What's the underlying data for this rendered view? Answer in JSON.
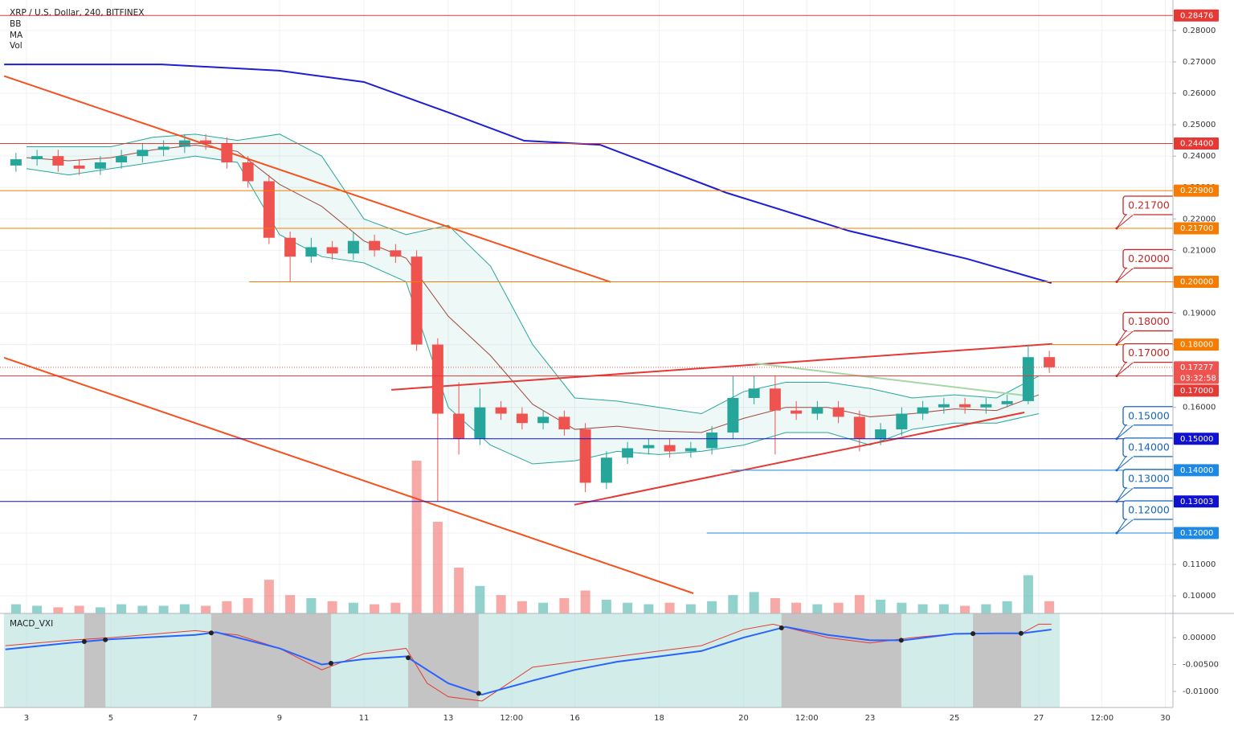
{
  "chart_data": {
    "type": "candlestick",
    "title": "XRP / U.S. Dollar, 240, BITFINEX",
    "indicators": [
      "BB",
      "MA",
      "Vol"
    ],
    "up_color": "#26a69a",
    "down_color": "#ef5350",
    "xlim": [
      2.467,
      30.181
    ],
    "xticks": [
      3,
      5,
      7,
      9,
      11,
      13,
      {
        "value": 14.5,
        "label": "12:00"
      },
      16,
      18,
      20,
      {
        "value": 21.5,
        "label": "12:00"
      },
      23,
      25,
      27,
      {
        "value": 28.5,
        "label": "12:00"
      },
      30
    ],
    "ylim": [
      0.0944,
      0.2897
    ],
    "yticks": [
      {
        "value": 0.1,
        "label": "0.10000"
      },
      {
        "value": 0.11,
        "label": "0.11000"
      },
      {
        "value": 0.12,
        "label": "0.12000"
      },
      {
        "value": 0.13,
        "label": "0.13000"
      },
      {
        "value": 0.14,
        "label": "0.14000"
      },
      {
        "value": 0.15,
        "label": "0.15000"
      },
      {
        "value": 0.16,
        "label": "0.16000"
      },
      {
        "value": 0.17,
        "label": "0.17000"
      },
      {
        "value": 0.18,
        "label": "0.18000"
      },
      {
        "value": 0.19,
        "label": "0.19000"
      },
      {
        "value": 0.2,
        "label": "0.20000"
      },
      {
        "value": 0.21,
        "label": "0.21000"
      },
      {
        "value": 0.22,
        "label": "0.22000"
      },
      {
        "value": 0.23,
        "label": "0.23000"
      },
      {
        "value": 0.24,
        "label": "0.24000"
      },
      {
        "value": 0.25,
        "label": "0.25000"
      },
      {
        "value": 0.26,
        "label": "0.26000"
      },
      {
        "value": 0.27,
        "label": "0.27000"
      },
      {
        "value": 0.28,
        "label": "0.28000"
      }
    ],
    "grid": true,
    "x": [
      2.75,
      3.25,
      3.75,
      4.25,
      4.75,
      5.25,
      5.75,
      6.25,
      6.75,
      7.25,
      7.75,
      8.25,
      8.75,
      9.25,
      9.75,
      10.25,
      10.75,
      11.25,
      11.75,
      12.25,
      12.75,
      13.25,
      13.75,
      14.25,
      14.75,
      15.25,
      15.75,
      16.25,
      16.75,
      17.25,
      17.75,
      18.25,
      18.75,
      19.25,
      19.75,
      20.25,
      20.75,
      21.25,
      21.75,
      22.25,
      22.75,
      23.25,
      23.75,
      24.25,
      24.75,
      25.25,
      25.75,
      26.25,
      26.75,
      27.25
    ],
    "open": [
      0.237,
      0.239,
      0.24,
      0.237,
      0.236,
      0.238,
      0.24,
      0.242,
      0.243,
      0.245,
      0.244,
      0.238,
      0.232,
      0.214,
      0.208,
      0.211,
      0.209,
      0.213,
      0.21,
      0.208,
      0.18,
      0.158,
      0.15,
      0.16,
      0.158,
      0.155,
      0.157,
      0.153,
      0.136,
      0.144,
      0.147,
      0.148,
      0.146,
      0.147,
      0.152,
      0.163,
      0.166,
      0.159,
      0.158,
      0.16,
      0.157,
      0.15,
      0.153,
      0.158,
      0.16,
      0.161,
      0.16,
      0.161,
      0.162,
      0.176
    ],
    "high": [
      0.241,
      0.242,
      0.242,
      0.239,
      0.24,
      0.242,
      0.244,
      0.245,
      0.247,
      0.247,
      0.246,
      0.24,
      0.234,
      0.216,
      0.214,
      0.213,
      0.216,
      0.215,
      0.212,
      0.21,
      0.182,
      0.168,
      0.166,
      0.162,
      0.16,
      0.159,
      0.159,
      0.155,
      0.146,
      0.149,
      0.15,
      0.15,
      0.149,
      0.154,
      0.17,
      0.17,
      0.17,
      0.162,
      0.162,
      0.162,
      0.159,
      0.155,
      0.16,
      0.162,
      0.163,
      0.163,
      0.163,
      0.164,
      0.18,
      0.178
    ],
    "low": [
      0.235,
      0.237,
      0.235,
      0.234,
      0.234,
      0.236,
      0.238,
      0.24,
      0.241,
      0.242,
      0.236,
      0.23,
      0.212,
      0.2,
      0.206,
      0.207,
      0.207,
      0.208,
      0.206,
      0.178,
      0.13,
      0.145,
      0.148,
      0.156,
      0.153,
      0.153,
      0.151,
      0.133,
      0.134,
      0.142,
      0.145,
      0.144,
      0.144,
      0.145,
      0.15,
      0.161,
      0.145,
      0.156,
      0.156,
      0.155,
      0.146,
      0.148,
      0.151,
      0.156,
      0.158,
      0.158,
      0.158,
      0.16,
      0.161,
      0.171
    ],
    "close": [
      0.239,
      0.24,
      0.237,
      0.236,
      0.238,
      0.24,
      0.242,
      0.243,
      0.245,
      0.244,
      0.238,
      0.232,
      0.214,
      0.208,
      0.211,
      0.209,
      0.213,
      0.21,
      0.208,
      0.18,
      0.158,
      0.15,
      0.16,
      0.158,
      0.155,
      0.157,
      0.153,
      0.136,
      0.144,
      0.147,
      0.148,
      0.146,
      0.147,
      0.152,
      0.163,
      0.166,
      0.159,
      0.158,
      0.16,
      0.157,
      0.15,
      0.153,
      0.158,
      0.16,
      0.161,
      0.16,
      0.161,
      0.162,
      0.176,
      0.17277
    ],
    "volume": [
      6,
      5,
      4,
      5,
      4,
      6,
      5,
      5,
      6,
      5,
      8,
      10,
      22,
      12,
      10,
      8,
      7,
      6,
      7,
      100,
      60,
      30,
      18,
      12,
      8,
      7,
      10,
      15,
      9,
      7,
      6,
      7,
      6,
      8,
      12,
      14,
      10,
      7,
      6,
      7,
      12,
      9,
      7,
      6,
      6,
      5,
      6,
      8,
      25,
      8
    ],
    "bb": {
      "x": [
        3,
        4,
        5,
        6,
        7,
        8,
        9,
        10,
        11,
        12,
        13,
        14,
        15,
        16,
        17,
        18,
        19,
        20,
        21,
        22,
        23,
        24,
        25,
        26,
        27
      ],
      "upper": [
        0.243,
        0.243,
        0.243,
        0.246,
        0.247,
        0.245,
        0.247,
        0.24,
        0.22,
        0.215,
        0.218,
        0.205,
        0.18,
        0.163,
        0.162,
        0.16,
        0.158,
        0.165,
        0.168,
        0.168,
        0.166,
        0.163,
        0.164,
        0.163,
        0.17
      ],
      "basis": [
        0.2395,
        0.2385,
        0.2395,
        0.242,
        0.2435,
        0.2415,
        0.231,
        0.224,
        0.213,
        0.2075,
        0.189,
        0.1765,
        0.161,
        0.153,
        0.154,
        0.1525,
        0.152,
        0.1565,
        0.16,
        0.16,
        0.157,
        0.158,
        0.1595,
        0.159,
        0.164
      ],
      "lower": [
        0.236,
        0.234,
        0.236,
        0.238,
        0.24,
        0.238,
        0.215,
        0.208,
        0.206,
        0.2,
        0.16,
        0.148,
        0.142,
        0.143,
        0.146,
        0.145,
        0.146,
        0.148,
        0.152,
        0.152,
        0.148,
        0.153,
        0.155,
        0.155,
        0.158
      ],
      "color": "#26a69a",
      "basis_color": "#a1483f"
    },
    "ma": {
      "x": [
        2.47,
        6.2,
        9.0,
        11.0,
        13.0,
        14.8,
        16.6,
        19.6,
        22.5,
        25.3,
        27.3
      ],
      "values": [
        0.2692,
        0.2692,
        0.2672,
        0.2636,
        0.2539,
        0.2449,
        0.2436,
        0.2283,
        0.2162,
        0.2073,
        0.1996
      ],
      "color": "#1e1ed2"
    },
    "trendlines": [
      {
        "points": [
          [
            2.47,
            0.2655
          ],
          [
            16.85,
            0.1999
          ]
        ],
        "color": "#f4511e"
      },
      {
        "points": [
          [
            2.47,
            0.1758
          ],
          [
            18.81,
            0.1008
          ]
        ],
        "color": "#f4511e"
      },
      {
        "points": [
          [
            11.65,
            0.1656
          ],
          [
            27.32,
            0.1802
          ]
        ],
        "color": "#e53935"
      },
      {
        "points": [
          [
            15.99,
            0.129
          ],
          [
            26.66,
            0.1584
          ]
        ],
        "color": "#e53935"
      },
      {
        "points": [
          [
            20.28,
            0.174
          ],
          [
            26.85,
            0.1635
          ]
        ],
        "color": "#a5d6a7"
      }
    ],
    "levels": [
      {
        "value": 0.28476,
        "label": "0.28476",
        "color": "#e53935"
      },
      {
        "value": 0.244,
        "label": "0.24400",
        "color": "#e53935"
      },
      {
        "value": 0.229,
        "label": "0.22900",
        "color": "#f57c00"
      },
      {
        "value": 0.217,
        "label": "0.21700",
        "color": "#f57c00"
      },
      {
        "value": 0.2,
        "label": "0.20000",
        "color": "#f57c00",
        "start": 8.28
      },
      {
        "value": 0.18,
        "label": "0.18000",
        "color": "#f57c00",
        "start": 27.3
      },
      {
        "value": 0.17277,
        "label": "0.17277",
        "color": "#ef5350",
        "countdown": "03:32:58",
        "dotted": true
      },
      {
        "value": 0.17,
        "label": "0.17000",
        "color": "#e53935"
      },
      {
        "value": 0.15,
        "label": "0.15000",
        "color": "#1010d0"
      },
      {
        "value": 0.14,
        "label": "0.14000",
        "color": "#1e88e5",
        "start": 19.7
      },
      {
        "value": 0.13003,
        "label": "0.13003",
        "color": "#1010d0"
      },
      {
        "value": 0.12,
        "label": "0.12000",
        "color": "#1e88e5",
        "start": 19.13
      }
    ],
    "callouts": [
      {
        "value": 0.217,
        "label": "0.21700",
        "color": "#c62828"
      },
      {
        "value": 0.2,
        "label": "0.20000",
        "color": "#c62828"
      },
      {
        "value": 0.18,
        "label": "0.18000",
        "color": "#c62828"
      },
      {
        "value": 0.17,
        "label": "0.17000",
        "color": "#c62828"
      },
      {
        "value": 0.15,
        "label": "0.15000",
        "color": "#1565c0"
      },
      {
        "value": 0.14,
        "label": "0.14000",
        "color": "#1565c0"
      },
      {
        "value": 0.13,
        "label": "0.13000",
        "color": "#1565c0"
      },
      {
        "value": 0.12,
        "label": "0.12000",
        "color": "#1565c0"
      }
    ],
    "macd": {
      "name": "MACD_VXI",
      "ylim": [
        -0.013,
        0.0045
      ],
      "yticks": [
        {
          "value": 0,
          "label": "0.00000"
        },
        {
          "value": -0.005,
          "label": "-0.00500"
        },
        {
          "value": -0.01,
          "label": "-0.01000"
        }
      ],
      "shaded_ranges": [
        [
          4.37,
          4.87
        ],
        [
          7.38,
          10.22
        ],
        [
          12.05,
          13.72
        ],
        [
          20.9,
          23.74
        ],
        [
          25.44,
          26.58
        ]
      ],
      "macd_line": {
        "x": [
          2.5,
          4,
          5,
          7,
          7.5,
          9,
          10,
          11,
          12,
          13,
          13.8,
          15,
          16,
          17,
          18,
          19,
          20,
          21,
          22,
          23,
          23.8,
          25,
          26,
          26.6,
          27.3
        ],
        "values": [
          -0.0022,
          -0.001,
          -0.0003,
          0.0005,
          0.001,
          -0.002,
          -0.005,
          -0.004,
          -0.0035,
          -0.0085,
          -0.0106,
          -0.008,
          -0.006,
          -0.0045,
          -0.0035,
          -0.0025,
          0.0,
          0.002,
          0.0005,
          -0.0005,
          -0.0005,
          0.0007,
          0.0008,
          0.0008,
          0.0015
        ],
        "color": "#2962ff"
      },
      "signal_line": {
        "x": [
          2.5,
          4,
          5,
          7,
          8,
          9,
          10,
          11,
          12,
          12.5,
          13,
          13.8,
          15,
          16,
          17,
          18,
          19,
          20,
          20.7,
          22,
          23,
          24,
          25,
          26.6,
          27,
          27.3
        ],
        "values": [
          -0.0015,
          -0.0005,
          0.0,
          0.0013,
          0.0005,
          -0.002,
          -0.006,
          -0.003,
          -0.002,
          -0.0085,
          -0.011,
          -0.0118,
          -0.0055,
          -0.0045,
          -0.0035,
          -0.0025,
          -0.0015,
          0.0015,
          0.0025,
          0.0,
          -0.001,
          0.0,
          0.0007,
          0.0008,
          0.0025,
          0.0025
        ],
        "color": "#e53935"
      }
    }
  }
}
